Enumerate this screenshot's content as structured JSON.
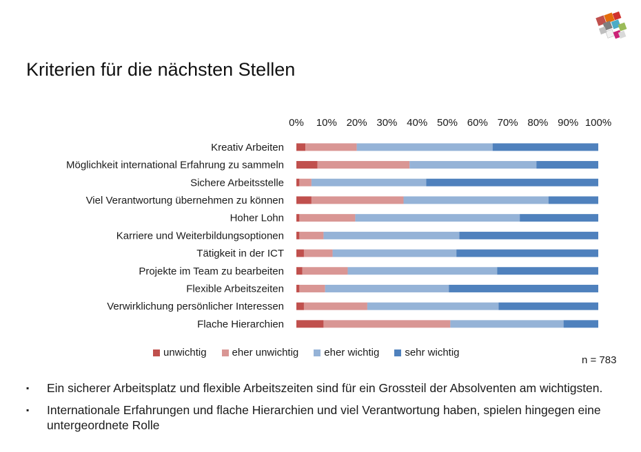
{
  "title": "Kriterien für die nächsten Stellen",
  "n_label": "n = 783",
  "bullets": [
    "Ein sicherer Arbeitsplatz und flexible Arbeitszeiten sind für ein Grossteil der Absolventen am wichtigsten.",
    "Internationale Erfahrungen und flache Hierarchien und viel Verantwortung haben,  spielen hingegen eine untergeordnete Rolle"
  ],
  "logo_icon": "colored-squares-logo-icon",
  "colors": {
    "unwichtig": "#c0504d",
    "eher_unwichtig": "#d99694",
    "eher_wichtig": "#95b3d7",
    "sehr_wichtig": "#4f81bd"
  },
  "chart_data": {
    "type": "bar",
    "orientation": "horizontal",
    "stacked": "percent",
    "axis_position": "top",
    "xlim": [
      0,
      100
    ],
    "x_ticks": [
      "0%",
      "10%",
      "20%",
      "30%",
      "40%",
      "50%",
      "60%",
      "70%",
      "80%",
      "90%",
      "100%"
    ],
    "categories": [
      "Kreativ Arbeiten",
      "Möglichkeit international Erfahrung zu sammeln",
      "Sichere Arbeitsstelle",
      "Viel Verantwortung übernehmen zu können",
      "Hoher Lohn",
      "Karriere und Weiterbildungsoptionen",
      "Tätigkeit in der ICT",
      "Projekte im Team zu bearbeiten",
      "Flexible Arbeitszeiten",
      "Verwirklichung persönlicher Interessen",
      "Flache Hierarchien"
    ],
    "series": [
      {
        "name": "unwichtig",
        "color": "#c0504d",
        "values": [
          3,
          7,
          1,
          5,
          1,
          1,
          2.5,
          2,
          1,
          2.5,
          9
        ]
      },
      {
        "name": "eher unwichtig",
        "color": "#d99694",
        "values": [
          17,
          30.5,
          4,
          30.5,
          18.5,
          8,
          9.5,
          15,
          8.5,
          21,
          42
        ]
      },
      {
        "name": "eher wichtig",
        "color": "#95b3d7",
        "values": [
          45,
          42,
          38,
          48,
          54.5,
          45,
          41,
          49.5,
          41,
          43.5,
          37.5
        ]
      },
      {
        "name": "sehr wichtig",
        "color": "#4f81bd",
        "values": [
          35,
          20.5,
          57,
          16.5,
          26,
          46,
          47,
          33.5,
          49.5,
          33,
          11.5
        ]
      }
    ],
    "legend": "bottom",
    "grid": false
  }
}
